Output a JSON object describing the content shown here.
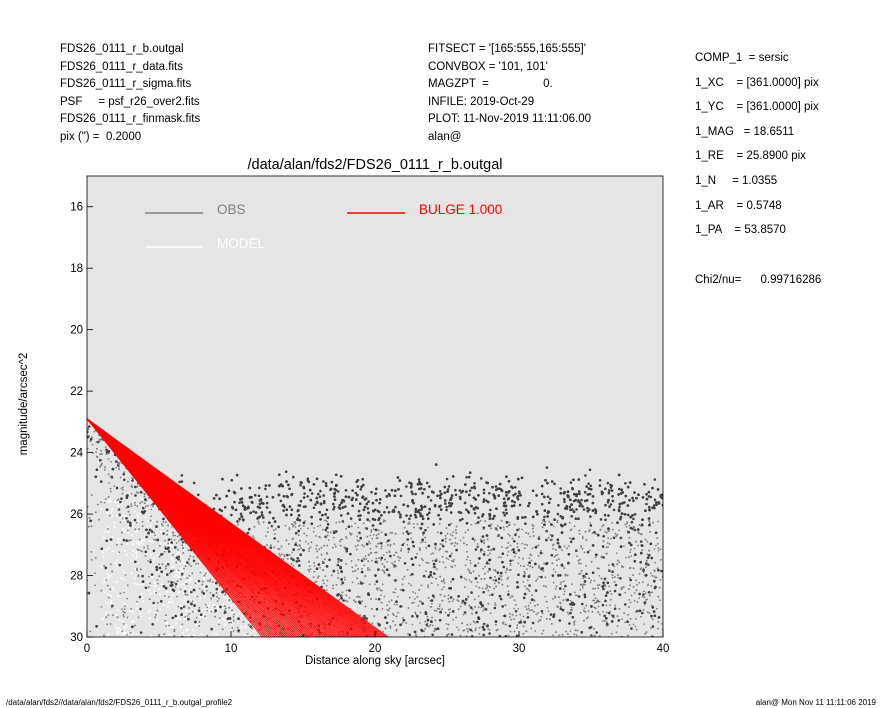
{
  "header_left": [
    "FDS26_0111_r_b.outgal",
    "FDS26_0111_r_data.fits",
    "FDS26_0111_r_sigma.fits",
    "PSF     = psf_r26_over2.fits",
    "FDS26_0111_r_finmask.fits",
    "pix (\") =  0.2000"
  ],
  "header_mid": [
    "FITSECT = '[165:555,165:555]'",
    "CONVBOX = '101, 101'",
    "MAGZPT  =                 0.",
    "INFILE: 2019-Oct-29",
    "PLOT: 11-Nov-2019 11:11:06.00",
    "alan@"
  ],
  "header_right": [
    "COMP_1  = sersic",
    "1_XC    = [361.0000] pix",
    "1_YC    = [361.0000] pix",
    "1_MAG   = 18.6511",
    "1_RE    = 25.8900 pix",
    "1_N     = 1.0355",
    "1_AR    = 0.5748",
    "1_PA    = 53.8570"
  ],
  "chi2": "Chi2/nu=      0.99716286",
  "footer_left": "/data/alan/fds2//data/alan/fds2/FDS26_0111_r_b.outgal_profile2",
  "footer_right": "alan@  Mon Nov 11 11:11:06 2019",
  "colors": {
    "background": "#e5e5e5",
    "obs": "#808080",
    "obs_dark": "#404040",
    "model": "#ffffff",
    "bulge": "#ff0000"
  },
  "chart_data": {
    "type": "scatter",
    "title": "/data/alan/fds2/FDS26_0111_r_b.outgal",
    "xlabel": "Distance along sky [arcsec]",
    "ylabel": "magnitude/arcsec^2",
    "xlim": [
      0,
      40
    ],
    "ylim": [
      30,
      15
    ],
    "xticks": [
      "0",
      "10",
      "20",
      "30",
      "40"
    ],
    "yticks": [
      "16",
      "18",
      "20",
      "22",
      "24",
      "26",
      "28",
      "30"
    ],
    "grid": false,
    "legend": [
      {
        "label": "OBS",
        "color": "#808080"
      },
      {
        "label": "MODEL",
        "color": "#ffffff"
      },
      {
        "label": "BULGE  1.000",
        "color": "#ff0000"
      }
    ],
    "series": [
      {
        "name": "OBS",
        "description": "scattered points; profile rises from about 23 mag at r=0 to a noise floor near 25-30 mag beyond r~10",
        "center_mag": 23.0,
        "floor_mag_range": [
          24.8,
          30
        ]
      },
      {
        "name": "BULGE  1.000",
        "mag_at_center": 22.9,
        "mag_at_min_axis": [
          29.5,
          30
        ],
        "x_end_range": [
          12.5,
          21.5
        ]
      }
    ]
  }
}
